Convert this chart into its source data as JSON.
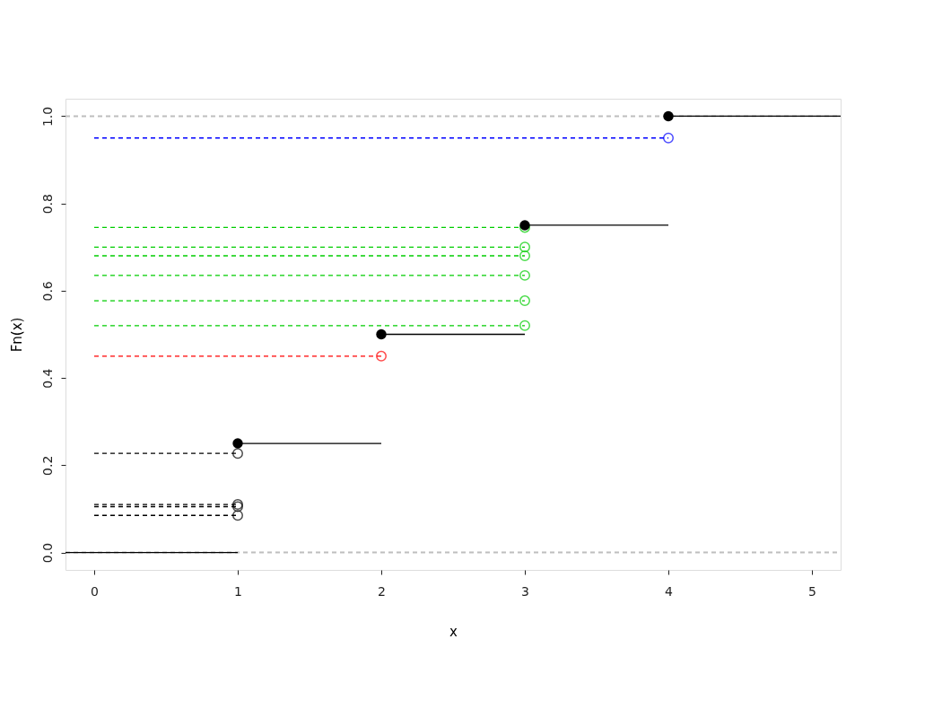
{
  "chart_data": {
    "type": "line",
    "xlabel": "x",
    "ylabel": "Fn(x)",
    "xlim": [
      -0.2,
      5.2
    ],
    "xticks": [
      0,
      1,
      2,
      3,
      4,
      5
    ],
    "ylim": [
      -0.04,
      1.04
    ],
    "yticks": [
      {
        "value": 0,
        "label": "0.0"
      },
      {
        "value": 0.2,
        "label": "0.2"
      },
      {
        "value": 0.4,
        "label": "0.4"
      },
      {
        "value": 0.6,
        "label": "0.6"
      },
      {
        "value": 0.8,
        "label": "0.8"
      },
      {
        "value": 1,
        "label": "1.0"
      }
    ],
    "grid": false,
    "ref_lines": [
      {
        "axis": "y",
        "value": 0,
        "color": "#bebebe",
        "line_style": "dashed"
      },
      {
        "axis": "y",
        "value": 1,
        "color": "#bebebe",
        "line_style": "dashed"
      }
    ],
    "series": [
      {
        "color": "#000000",
        "line_style": "solid",
        "marker": "none",
        "x": [
          -0.2,
          1
        ],
        "values": [
          0,
          0
        ]
      },
      {
        "type": "line",
        "color": "#000000",
        "line_style": "solid",
        "marker": "none",
        "x": [
          1,
          2
        ],
        "values": [
          0.25,
          0.25
        ]
      },
      {
        "type": "line",
        "color": "#000000",
        "line_style": "solid",
        "marker": "none",
        "x": [
          2,
          3
        ],
        "values": [
          0.5,
          0.5
        ]
      },
      {
        "type": "line",
        "color": "#000000",
        "line_style": "solid",
        "marker": "none",
        "x": [
          3,
          4
        ],
        "values": [
          0.75,
          0.75
        ]
      },
      {
        "type": "line",
        "color": "#000000",
        "line_style": "solid",
        "marker": "none",
        "x": [
          4,
          5.2
        ],
        "values": [
          1,
          1
        ]
      },
      {
        "type": "line",
        "color": "#000000",
        "line_style": "dashed",
        "marker": "circle",
        "x": [
          0,
          1
        ],
        "values": [
          0.085,
          0.085
        ]
      },
      {
        "type": "line",
        "color": "#000000",
        "line_style": "dashed",
        "marker": "circle",
        "x": [
          0,
          1
        ],
        "values": [
          0.105,
          0.105
        ]
      },
      {
        "type": "line",
        "color": "#000000",
        "line_style": "dashed",
        "marker": "circle",
        "x": [
          0,
          1
        ],
        "values": [
          0.11,
          0.11
        ]
      },
      {
        "type": "line",
        "color": "#000000",
        "line_style": "dashed",
        "marker": "circle",
        "x": [
          0,
          1
        ],
        "values": [
          0.227,
          0.227
        ]
      },
      {
        "type": "line",
        "color": "#ff0000",
        "line_style": "dashed",
        "marker": "circle",
        "x": [
          0,
          2
        ],
        "values": [
          0.45,
          0.45
        ]
      },
      {
        "type": "line",
        "color": "#00cd00",
        "line_style": "dashed",
        "marker": "circle",
        "x": [
          0,
          3
        ],
        "values": [
          0.52,
          0.52
        ]
      },
      {
        "type": "line",
        "color": "#00cd00",
        "line_style": "dashed",
        "marker": "circle",
        "x": [
          0,
          3
        ],
        "values": [
          0.577,
          0.577
        ]
      },
      {
        "type": "line",
        "color": "#00cd00",
        "line_style": "dashed",
        "marker": "circle",
        "x": [
          0,
          3
        ],
        "values": [
          0.635,
          0.635
        ]
      },
      {
        "type": "line",
        "color": "#00cd00",
        "line_style": "dashed",
        "marker": "circle",
        "x": [
          0,
          3
        ],
        "values": [
          0.68,
          0.68
        ]
      },
      {
        "type": "line",
        "color": "#00cd00",
        "line_style": "dashed",
        "marker": "circle",
        "x": [
          0,
          3
        ],
        "values": [
          0.7,
          0.7
        ]
      },
      {
        "type": "line",
        "color": "#00cd00",
        "line_style": "dashed",
        "marker": "circle",
        "x": [
          0,
          3
        ],
        "values": [
          0.745,
          0.745
        ]
      },
      {
        "type": "line",
        "color": "#0000ff",
        "line_style": "dashed",
        "marker": "circle",
        "x": [
          0,
          4
        ],
        "values": [
          0.95,
          0.95
        ]
      },
      {
        "type": "scatter",
        "color": "#000000",
        "marker": "circle",
        "x": [
          1,
          2,
          3,
          4
        ],
        "values": [
          0.25,
          0.5,
          0.75,
          1
        ]
      }
    ]
  }
}
